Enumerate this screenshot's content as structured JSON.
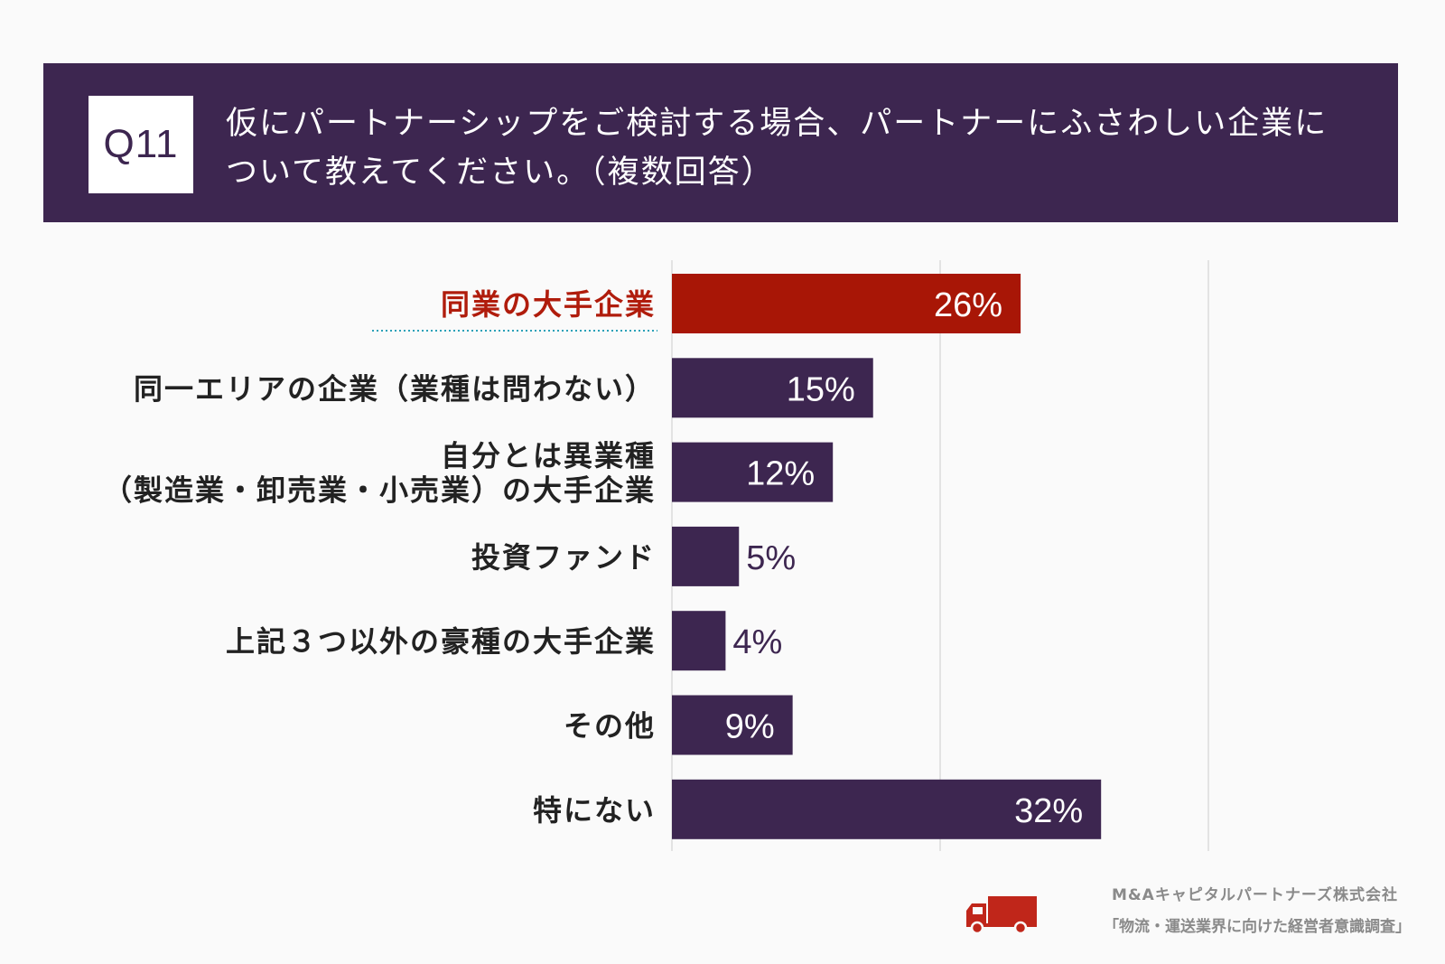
{
  "question": {
    "number": "Q11",
    "text_line1": "仮にパートナーシップをご検討する場合、パートナーにふさわしい企業に",
    "text_line2": "ついて教えてください。（複数回答）"
  },
  "colors": {
    "header_bg": "#3d2650",
    "bar": "#3d2650",
    "highlight_bar": "#a81606",
    "highlight_text": "#b01c0c",
    "label_text": "#222222"
  },
  "chart_data": {
    "type": "bar",
    "orientation": "horizontal",
    "unit": "%",
    "xlim": [
      0,
      60
    ],
    "gridlines": [
      20,
      40
    ],
    "highlight_index": 0,
    "categories": [
      [
        "同業の大手企業"
      ],
      [
        "同一エリアの企業（業種は問わない）"
      ],
      [
        "自分とは異業種",
        "（製造業・卸売業・小売業）の大手企業"
      ],
      [
        "投資ファンド"
      ],
      [
        "上記３つ以外の豪種の大手企業"
      ],
      [
        "その他"
      ],
      [
        "特にない"
      ]
    ],
    "values": [
      26,
      15,
      12,
      5,
      4,
      9,
      32
    ],
    "value_labels": [
      "26%",
      "15%",
      "12%",
      "5%",
      "4%",
      "9%",
      "32%"
    ]
  },
  "footer": {
    "company": "M&Aキャピタルパートナーズ株式会社",
    "survey": "「物流・運送業界に向けた経営者意識調査」",
    "icon": "truck-icon"
  }
}
